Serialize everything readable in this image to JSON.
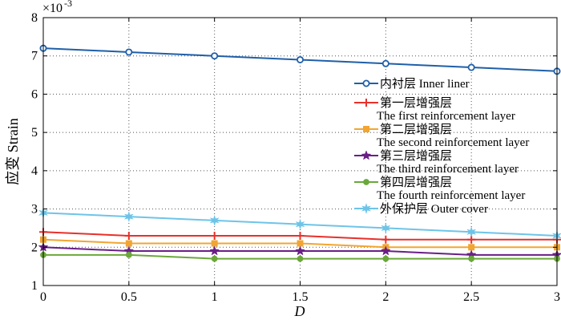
{
  "chart_data": {
    "type": "line",
    "title": "",
    "xlabel": "D",
    "ylabel": "应变 Strain",
    "y_exponent_label": "×10",
    "y_exponent_power": "-3",
    "x": [
      0,
      0.5,
      1,
      1.5,
      2,
      2.5,
      3
    ],
    "x_tick_labels": [
      "0",
      "0.5",
      "1",
      "1.5",
      "2",
      "2.5",
      "3"
    ],
    "y_tick_values": [
      1,
      2,
      3,
      4,
      5,
      6,
      7,
      8
    ],
    "y_tick_labels": [
      "1",
      "2",
      "3",
      "4",
      "5",
      "6",
      "7",
      "8"
    ],
    "xlim": [
      0,
      3
    ],
    "ylim": [
      1,
      8
    ],
    "grid": true,
    "legend_position": "right",
    "series": [
      {
        "name": "内衬层 Inner liner",
        "legend_lines": [
          "内衬层 Inner liner"
        ],
        "color": "#1f5fa8",
        "marker": "circle",
        "values": [
          7.2,
          7.1,
          7.0,
          6.9,
          6.8,
          6.7,
          6.6
        ]
      },
      {
        "name": "第一层增强层 The first reinforcement layer",
        "legend_lines": [
          "第一层增强层",
          "The first reinforcement layer"
        ],
        "color": "#e8302a",
        "marker": "plus",
        "values": [
          2.4,
          2.3,
          2.3,
          2.3,
          2.2,
          2.2,
          2.2
        ]
      },
      {
        "name": "第二层增强层 The second reinforcement layer",
        "legend_lines": [
          "第二层增强层",
          "The second reinforcement layer"
        ],
        "color": "#f2a531",
        "marker": "square",
        "values": [
          2.2,
          2.1,
          2.1,
          2.1,
          2.0,
          2.0,
          2.0
        ]
      },
      {
        "name": "第三层增强层 The third reinforcement layer",
        "legend_lines": [
          "第三层增强层",
          "The third reinforcement layer"
        ],
        "color": "#6a1f86",
        "marker": "star",
        "values": [
          2.0,
          1.9,
          1.9,
          1.9,
          1.9,
          1.8,
          1.8
        ]
      },
      {
        "name": "第四层增强层 The fourth reinforcement layer",
        "legend_lines": [
          "第四层增强层",
          "The fourth reinforcement layer"
        ],
        "color": "#6aa83a",
        "marker": "dot",
        "values": [
          1.8,
          1.8,
          1.7,
          1.7,
          1.7,
          1.7,
          1.7
        ]
      },
      {
        "name": "外保护层 Outer cover",
        "legend_lines": [
          "外保护层 Outer cover"
        ],
        "color": "#6ec4e8",
        "marker": "star6",
        "values": [
          2.9,
          2.8,
          2.7,
          2.6,
          2.5,
          2.4,
          2.3
        ]
      }
    ]
  }
}
